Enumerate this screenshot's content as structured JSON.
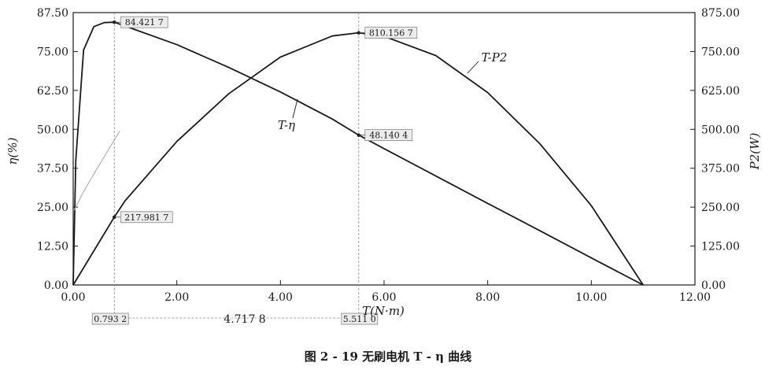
{
  "chart_data": {
    "type": "line",
    "title": "",
    "caption": "图 2 - 19   无刷电机 T - η 曲线",
    "xlabel": "T(N·m)",
    "ylabel_left": "η(%)",
    "ylabel_right": "P2(W)",
    "xlim": [
      0,
      12
    ],
    "ylim_left": [
      0,
      87.5
    ],
    "ylim_right": [
      0,
      875
    ],
    "x_ticks": [
      "0.00",
      "2.00",
      "4.00",
      "6.00",
      "8.00",
      "10.00",
      "12.00"
    ],
    "y_left_ticks": [
      "0.00",
      "12.50",
      "25.00",
      "37.50",
      "50.00",
      "62.50",
      "75.00",
      "87.50"
    ],
    "y_right_ticks": [
      "0.00",
      "125.00",
      "250.00",
      "375.00",
      "500.00",
      "625.00",
      "750.00",
      "875.00"
    ],
    "grid": false,
    "series": [
      {
        "name": "T-η",
        "axis": "left",
        "color": "#1a1a1a",
        "x": [
          0.0,
          0.05,
          0.2,
          0.4,
          0.6,
          0.7932,
          1.0,
          2.0,
          3.0,
          4.0,
          5.0,
          5.511,
          6.0,
          7.0,
          8.0,
          9.0,
          10.0,
          11.0
        ],
        "y": [
          0.0,
          40.0,
          75.5,
          83.0,
          84.3,
          84.42,
          83.2,
          77.2,
          69.9,
          62.0,
          53.3,
          48.14,
          43.8,
          35.0,
          26.2,
          17.5,
          8.7,
          0.0
        ]
      },
      {
        "name": "T-P2",
        "axis": "right",
        "color": "#1a1a1a",
        "x": [
          0.0,
          0.7932,
          1.0,
          2.0,
          3.0,
          4.0,
          5.0,
          5.511,
          6.0,
          7.0,
          8.0,
          9.0,
          10.0,
          11.0
        ],
        "y": [
          0.0,
          217.98,
          270.0,
          461.0,
          614.0,
          732.0,
          800.0,
          810.16,
          799.0,
          737.0,
          618.0,
          455.0,
          255.0,
          0.0
        ]
      },
      {
        "name": "",
        "axis": "left",
        "color": "#b0b0b0",
        "x": [
          0.02,
          0.2,
          0.5,
          0.9
        ],
        "y": [
          24.0,
          30.0,
          38.5,
          49.5
        ]
      }
    ],
    "series_labels": [
      "T-η",
      "T-P2"
    ],
    "markers": [
      {
        "x": 0.7932,
        "axis": "left",
        "y": 84.4217,
        "label": "84.421 7"
      },
      {
        "x": 0.7932,
        "axis": "right",
        "y": 217.9817,
        "label": "217.981 7"
      },
      {
        "x": 5.511,
        "axis": "right",
        "y": 810.1567,
        "label": "810.156 7"
      },
      {
        "x": 5.511,
        "axis": "left",
        "y": 48.1404,
        "label": "48.140 4"
      }
    ],
    "cursor_x_labels": [
      "0.793 2",
      "5.511 0"
    ],
    "cursor_delta_label": "4.717 8"
  }
}
